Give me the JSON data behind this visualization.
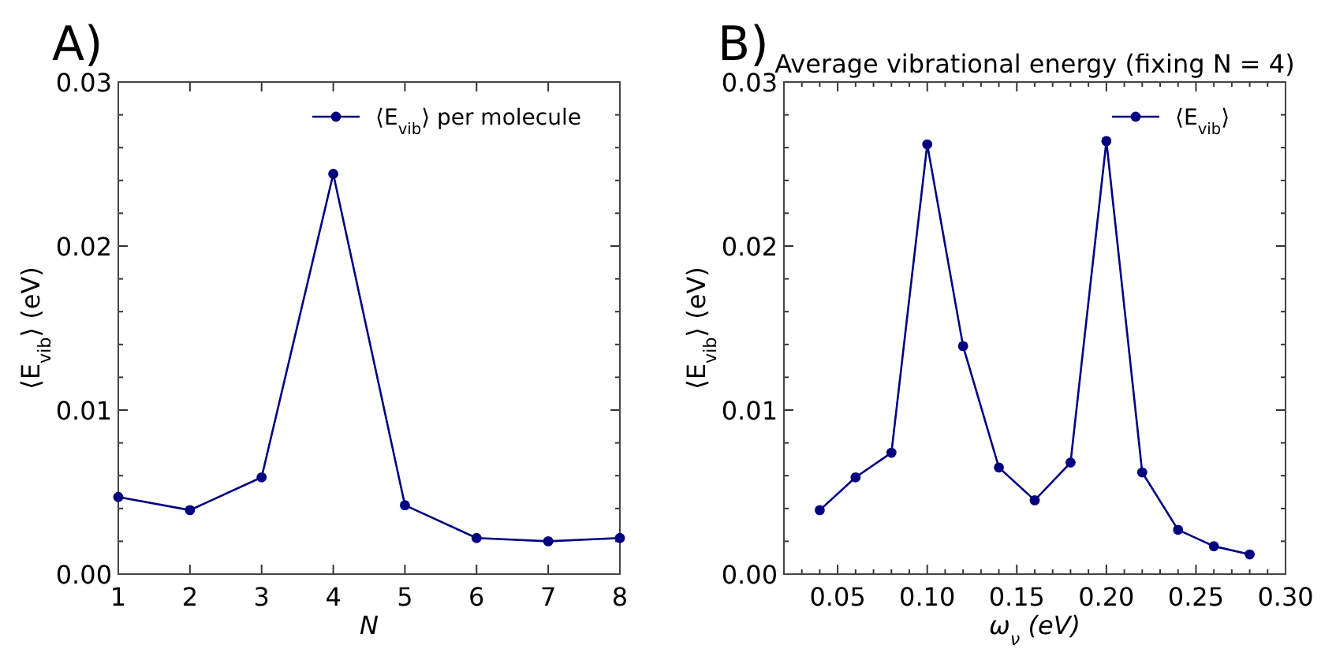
{
  "chart_data": [
    {
      "type": "line",
      "xlabel": "N",
      "ylabel": "⟨E$_{vib}$⟩ (eV)",
      "annotations": [
        "A)"
      ],
      "x": [
        1,
        2,
        3,
        4,
        5,
        6,
        7,
        8
      ],
      "series": [
        {
          "name": "⟨E$_{vib}$⟩ per molecule",
          "color": "#000080",
          "values": [
            0.0047,
            0.0039,
            0.0059,
            0.0244,
            0.0042,
            0.0022,
            0.002,
            0.0022
          ]
        }
      ],
      "xlim": [
        1,
        8
      ],
      "xticks": [
        1,
        2,
        3,
        4,
        5,
        6,
        7,
        8
      ],
      "ylim": [
        0,
        0.03
      ],
      "yticks": [
        "0.00",
        {
          "value": 0.002,
          "label": null
        },
        {
          "value": 0.004,
          "label": null
        },
        {
          "value": 0.006,
          "label": null
        },
        {
          "value": 0.008,
          "label": null
        },
        {
          "value": 0.01,
          "label": "0.01"
        },
        {
          "value": 0.012,
          "label": null
        },
        {
          "value": 0.014,
          "label": null
        },
        {
          "value": 0.016,
          "label": null
        },
        {
          "value": 0.018,
          "label": null
        },
        {
          "value": 0.02,
          "label": "0.02"
        },
        {
          "value": 0.022,
          "label": null
        },
        {
          "value": 0.024,
          "label": null
        },
        {
          "value": 0.026,
          "label": null
        },
        {
          "value": 0.028,
          "label": null
        },
        {
          "value": 0.03,
          "label": "0.03"
        }
      ],
      "legend": "top right",
      "marker": "circle",
      "line_style": "solid",
      "grid": false
    },
    {
      "type": "line",
      "title": "Average vibrational energy (fixing N = 4)",
      "xlabel": "ω$_{ν}$ (eV)",
      "ylabel": "⟨E$_{vib}$⟩ (eV)",
      "annotations": [
        "B)"
      ],
      "x": [
        0.04,
        0.06,
        0.08,
        0.1,
        0.12,
        0.14,
        0.16,
        0.18,
        0.2,
        0.22,
        0.24,
        0.26,
        0.28
      ],
      "series": [
        {
          "name": "⟨E$_{vib}$⟩",
          "color": "#000080",
          "values": [
            0.0039,
            0.0059,
            0.0074,
            0.0262,
            0.0139,
            0.0065,
            0.0045,
            0.0068,
            0.0264,
            0.0062,
            0.0027,
            0.0017,
            0.0012
          ]
        }
      ],
      "xlim": [
        0.02,
        0.3
      ],
      "xticks": [
        {
          "value": 0.03,
          "label": null
        },
        {
          "value": 0.04,
          "label": null
        },
        {
          "value": 0.05,
          "label": "0.05"
        },
        {
          "value": 0.06,
          "label": null
        },
        {
          "value": 0.07,
          "label": null
        },
        {
          "value": 0.08,
          "label": null
        },
        {
          "value": 0.09,
          "label": null
        },
        {
          "value": 0.1,
          "label": "0.10"
        },
        {
          "value": 0.11,
          "label": null
        },
        {
          "value": 0.12,
          "label": null
        },
        {
          "value": 0.13,
          "label": null
        },
        {
          "value": 0.14,
          "label": null
        },
        {
          "value": 0.15,
          "label": "0.15"
        },
        {
          "value": 0.16,
          "label": null
        },
        {
          "value": 0.17,
          "label": null
        },
        {
          "value": 0.18,
          "label": null
        },
        {
          "value": 0.19,
          "label": null
        },
        {
          "value": 0.2,
          "label": "0.20"
        },
        {
          "value": 0.21,
          "label": null
        },
        {
          "value": 0.22,
          "label": null
        },
        {
          "value": 0.23,
          "label": null
        },
        {
          "value": 0.24,
          "label": null
        },
        {
          "value": 0.25,
          "label": "0.25"
        },
        {
          "value": 0.26,
          "label": null
        },
        {
          "value": 0.27,
          "label": null
        },
        {
          "value": 0.28,
          "label": null
        },
        {
          "value": 0.29,
          "label": null
        },
        {
          "value": 0.3,
          "label": "0.30"
        }
      ],
      "ylim": [
        0,
        0.03
      ],
      "yticks": [
        {
          "value": 0,
          "label": "0.00"
        },
        {
          "value": 0.002,
          "label": null
        },
        {
          "value": 0.004,
          "label": null
        },
        {
          "value": 0.006,
          "label": null
        },
        {
          "value": 0.008,
          "label": null
        },
        {
          "value": 0.01,
          "label": "0.01"
        },
        {
          "value": 0.012,
          "label": null
        },
        {
          "value": 0.014,
          "label": null
        },
        {
          "value": 0.016,
          "label": null
        },
        {
          "value": 0.018,
          "label": null
        },
        {
          "value": 0.02,
          "label": "0.02"
        },
        {
          "value": 0.022,
          "label": null
        },
        {
          "value": 0.024,
          "label": null
        },
        {
          "value": 0.026,
          "label": null
        },
        {
          "value": 0.028,
          "label": null
        },
        {
          "value": 0.03,
          "label": "0.03"
        }
      ],
      "legend": "top right",
      "marker": "circle",
      "line_style": "solid",
      "grid": false
    }
  ]
}
